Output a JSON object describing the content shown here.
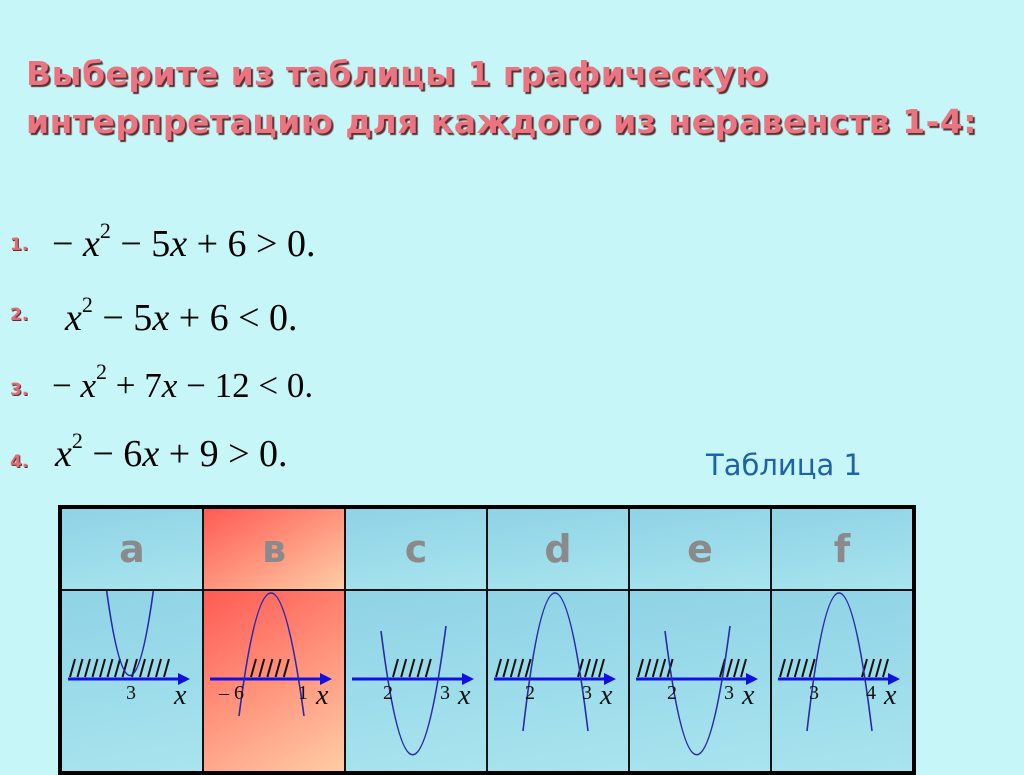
{
  "title": [
    "Выберите из таблицы 1 графическую",
    "интерпретацию для каждого из неравенств 1-4:"
  ],
  "equations": [
    {
      "label": "1.",
      "parts": [
        {
          "t": "− "
        },
        {
          "i": "x"
        },
        {
          "sup": "2"
        },
        {
          "t": " − 5"
        },
        {
          "i": "x"
        },
        {
          "t": " + 6 > 0."
        }
      ]
    },
    {
      "label": "2.",
      "parts": [
        {
          "i": "x"
        },
        {
          "sup": "2"
        },
        {
          "t": " − 5"
        },
        {
          "i": "x"
        },
        {
          "t": " + 6 < 0."
        }
      ]
    },
    {
      "label": "3.",
      "parts": [
        {
          "t": "− "
        },
        {
          "i": "x"
        },
        {
          "sup": "2"
        },
        {
          "t": " + 7"
        },
        {
          "i": "x"
        },
        {
          "t": " − 12 < 0."
        }
      ]
    },
    {
      "label": "4.",
      "parts": [
        {
          "i": "x"
        },
        {
          "sup": "2"
        },
        {
          "t": " − 6"
        },
        {
          "i": "x"
        },
        {
          "t": " + 9 > 0."
        }
      ]
    }
  ],
  "table_caption": "Таблица 1",
  "columns": [
    {
      "letter": "a",
      "opens": "up",
      "roots": [
        "3"
      ],
      "shade": "all-but-root",
      "highlight": false
    },
    {
      "letter": "в",
      "opens": "down",
      "roots": [
        "– 6",
        "1"
      ],
      "shade": "between",
      "highlight": true
    },
    {
      "letter": "c",
      "opens": "up",
      "roots": [
        "2",
        "3"
      ],
      "shade": "between",
      "highlight": false
    },
    {
      "letter": "d",
      "opens": "down",
      "roots": [
        "2",
        "3"
      ],
      "shade": "outside",
      "highlight": false
    },
    {
      "letter": "e",
      "opens": "up",
      "roots": [
        "2",
        "3"
      ],
      "shade": "outside",
      "highlight": false
    },
    {
      "letter": "f",
      "opens": "down",
      "roots": [
        "3",
        "4"
      ],
      "shade": "outside",
      "highlight": false
    }
  ],
  "axis_label": "x",
  "colors": {
    "title": "#ec7480",
    "curve": "#2a2aa8",
    "axis": "#1010e0",
    "caption": "#1e62a8",
    "highlight": "#ff5a54"
  }
}
